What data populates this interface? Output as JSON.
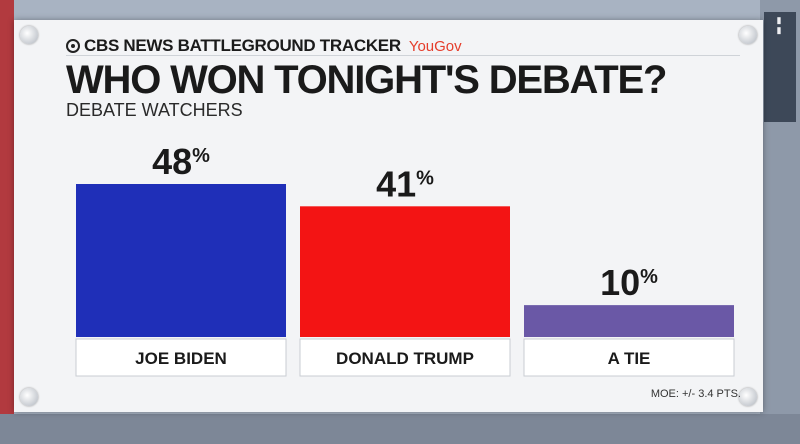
{
  "header": {
    "brand": "CBS NEWS BATTLEGROUND TRACKER",
    "partner": "YouGov"
  },
  "chart_data": {
    "type": "bar",
    "title": "WHO WON TONIGHT'S DEBATE?",
    "subtitle": "DEBATE WATCHERS",
    "categories": [
      "JOE BIDEN",
      "DONALD TRUMP",
      "A TIE"
    ],
    "values": [
      48,
      41,
      10
    ],
    "value_labels": [
      "48",
      "41",
      "10"
    ],
    "value_suffix": "%",
    "colors": [
      "#1f2fb8",
      "#f31414",
      "#6a58a6"
    ],
    "ylim": [
      0,
      48
    ],
    "grid": false
  },
  "footer": {
    "moe": "MOE: +/- 3.4 PTS."
  }
}
